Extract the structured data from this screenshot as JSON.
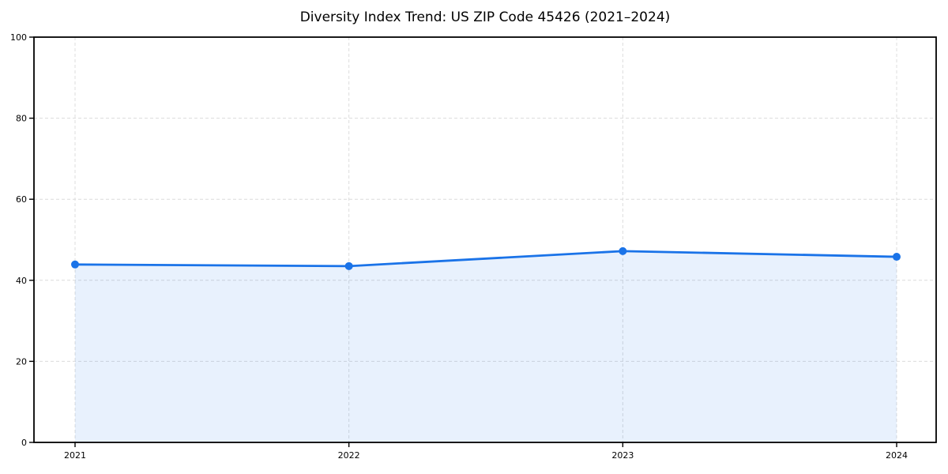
{
  "chart_data": {
    "type": "line",
    "title": "Diversity Index Trend: US ZIP Code 45426 (2021–2024)",
    "x": [
      "2021",
      "2022",
      "2023",
      "2024"
    ],
    "series": [
      {
        "name": "Diversity Index",
        "values": [
          43.9,
          43.5,
          47.2,
          45.8
        ]
      }
    ],
    "xlabel": "",
    "ylabel": "",
    "ylim": [
      0,
      100
    ],
    "yticks": [
      0,
      20,
      40,
      60,
      80,
      100
    ],
    "grid": "dashed-both-axes",
    "legend": "none",
    "marker": "circle",
    "area_fill": true,
    "colors": {
      "line": "#1a73e8",
      "marker": "#1a73e8",
      "area": "rgba(26,115,232,0.10)",
      "gridline": "#dcdcdc",
      "spine": "#000000",
      "background": "#ffffff",
      "text": "#000000"
    }
  }
}
